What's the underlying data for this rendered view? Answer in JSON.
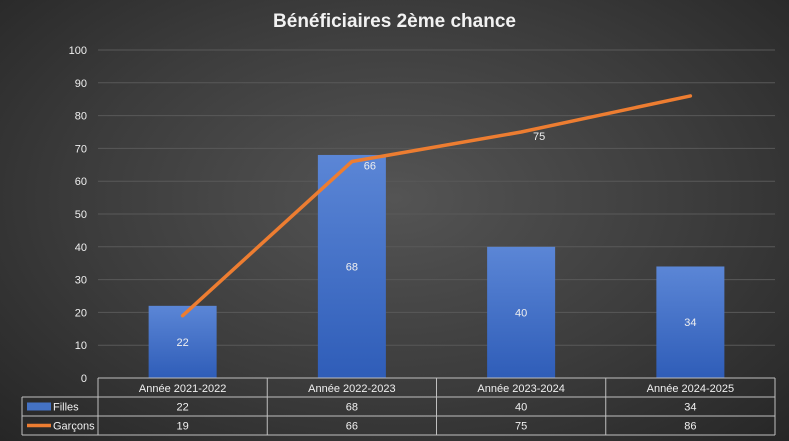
{
  "chart_data": {
    "type": "bar",
    "title": "Bénéficiaires 2ème chance",
    "categories": [
      "Année 2021-2022",
      "Année 2022-2023",
      "Année 2023-2024",
      "Année 2024-2025"
    ],
    "series": [
      {
        "name": "Filles",
        "type": "bar",
        "values": [
          22,
          68,
          40,
          34
        ],
        "color": "#4472c4",
        "data_labels": [
          "22",
          "68",
          "40",
          "34"
        ]
      },
      {
        "name": "Garçons",
        "type": "line",
        "values": [
          19,
          66,
          75,
          86
        ],
        "color": "#ed7d31",
        "data_labels": [
          "",
          "66",
          "75",
          ""
        ]
      }
    ],
    "y_ticks": [
      "0",
      "10",
      "20",
      "30",
      "40",
      "50",
      "60",
      "70",
      "80",
      "90",
      "100"
    ],
    "ylim": [
      0,
      100
    ],
    "grid": true,
    "data_table": true,
    "xlabel": "",
    "ylabel": ""
  },
  "colors": {
    "background": "#3f3f3f",
    "grid": "#595959",
    "text": "#f0f0f0",
    "table_border": "#bfbfbf"
  }
}
